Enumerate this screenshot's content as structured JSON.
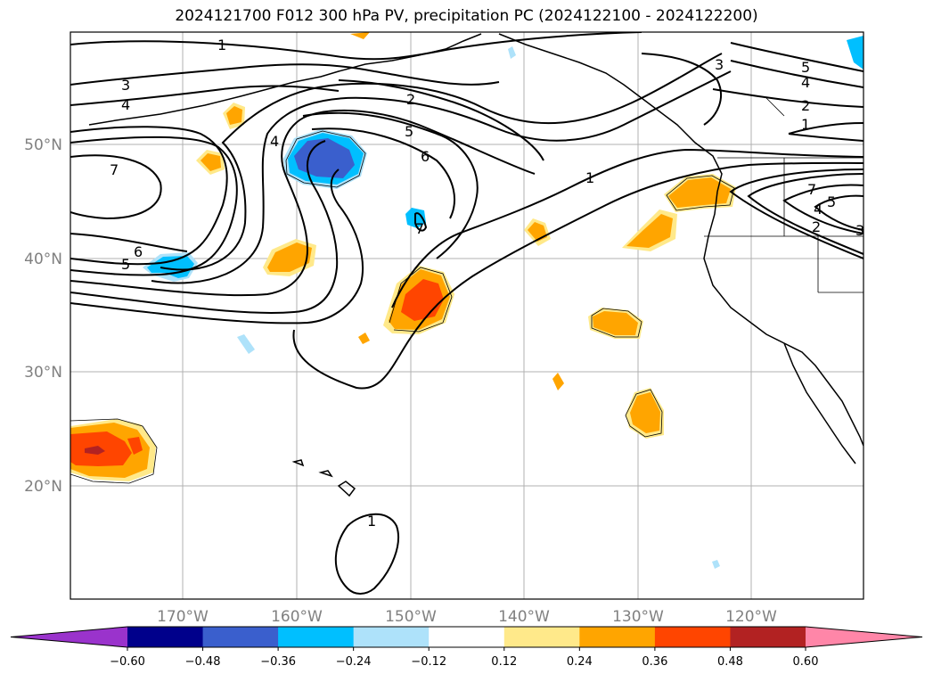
{
  "title": "2024121700 F012 300 hPa PV, precipitation PC (2024122100 - 2024122200)",
  "lat_labels": [
    "50°N",
    "40°N",
    "30°N",
    "20°N"
  ],
  "lon_labels": [
    "170°W",
    "160°W",
    "150°W",
    "140°W",
    "130°W",
    "120°W"
  ],
  "contour_labels": [
    "1",
    "3",
    "4",
    "7",
    "6",
    "5",
    "4",
    "2",
    "5",
    "6",
    "1",
    "3",
    "5",
    "4",
    "2",
    "1",
    "7",
    "5",
    "4",
    "2",
    "3",
    "1",
    "7"
  ],
  "colorbar": {
    "ticks": [
      "−0.60",
      "−0.48",
      "−0.36",
      "−0.24",
      "−0.12",
      "0.12",
      "0.24",
      "0.36",
      "0.48",
      "0.60"
    ],
    "colors": [
      "#9a33cc",
      "#00008b",
      "#3a5fcd",
      "#00bfff",
      "#aee2fa",
      "#ffffff",
      "#ffe98a",
      "#ffa500",
      "#ff4500",
      "#b22222",
      "#ff86a8"
    ]
  },
  "fill_colors": {
    "light_yellow": "#ffe98a",
    "orange": "#ffa500",
    "red_orange": "#ff4500",
    "dark_red": "#b22222",
    "light_blue": "#aee2fa",
    "sky_blue": "#00bfff",
    "royal_blue": "#3a5fcd"
  }
}
